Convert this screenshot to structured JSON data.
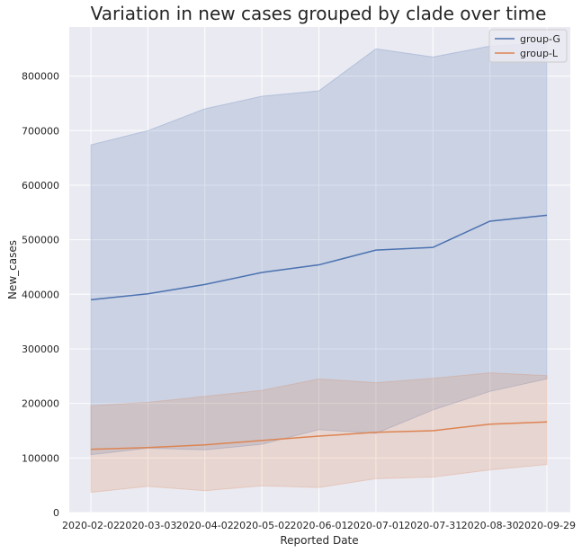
{
  "chart_data": {
    "type": "line",
    "title": "Variation in new cases grouped by clade over time",
    "xlabel": "Reported Date",
    "ylabel": "New_cases",
    "categories": [
      "2020-02-02",
      "2020-03-03",
      "2020-04-02",
      "2020-05-02",
      "2020-06-01",
      "2020-07-01",
      "2020-07-31",
      "2020-08-30",
      "2020-09-29"
    ],
    "ylim": [
      0,
      890000
    ],
    "yticks": [
      0,
      100000,
      200000,
      300000,
      400000,
      500000,
      600000,
      700000,
      800000
    ],
    "yticks_text": [
      "0",
      "100000",
      "200000",
      "300000",
      "400000",
      "500000",
      "600000",
      "700000",
      "800000"
    ],
    "grid": true,
    "legend_position": "top-right",
    "series": [
      {
        "name": "group-G",
        "color": "#4c72b0",
        "values": [
          390000,
          401000,
          418000,
          440000,
          454000,
          481000,
          486000,
          534000,
          545000
        ],
        "ci_upper": [
          674000,
          700000,
          740000,
          763000,
          773000,
          850000,
          835000,
          855000,
          860000
        ],
        "ci_lower": [
          106000,
          118000,
          115000,
          125000,
          152000,
          145000,
          188000,
          222000,
          245000
        ]
      },
      {
        "name": "group-L",
        "color": "#dd8452",
        "values": [
          116000,
          119000,
          124000,
          132000,
          140000,
          147000,
          150000,
          162000,
          166000
        ],
        "ci_upper": [
          196000,
          202000,
          213000,
          224000,
          245000,
          238000,
          246000,
          256000,
          251000
        ],
        "ci_lower": [
          37000,
          48000,
          40000,
          49000,
          46000,
          62000,
          65000,
          78000,
          88000
        ]
      }
    ]
  }
}
